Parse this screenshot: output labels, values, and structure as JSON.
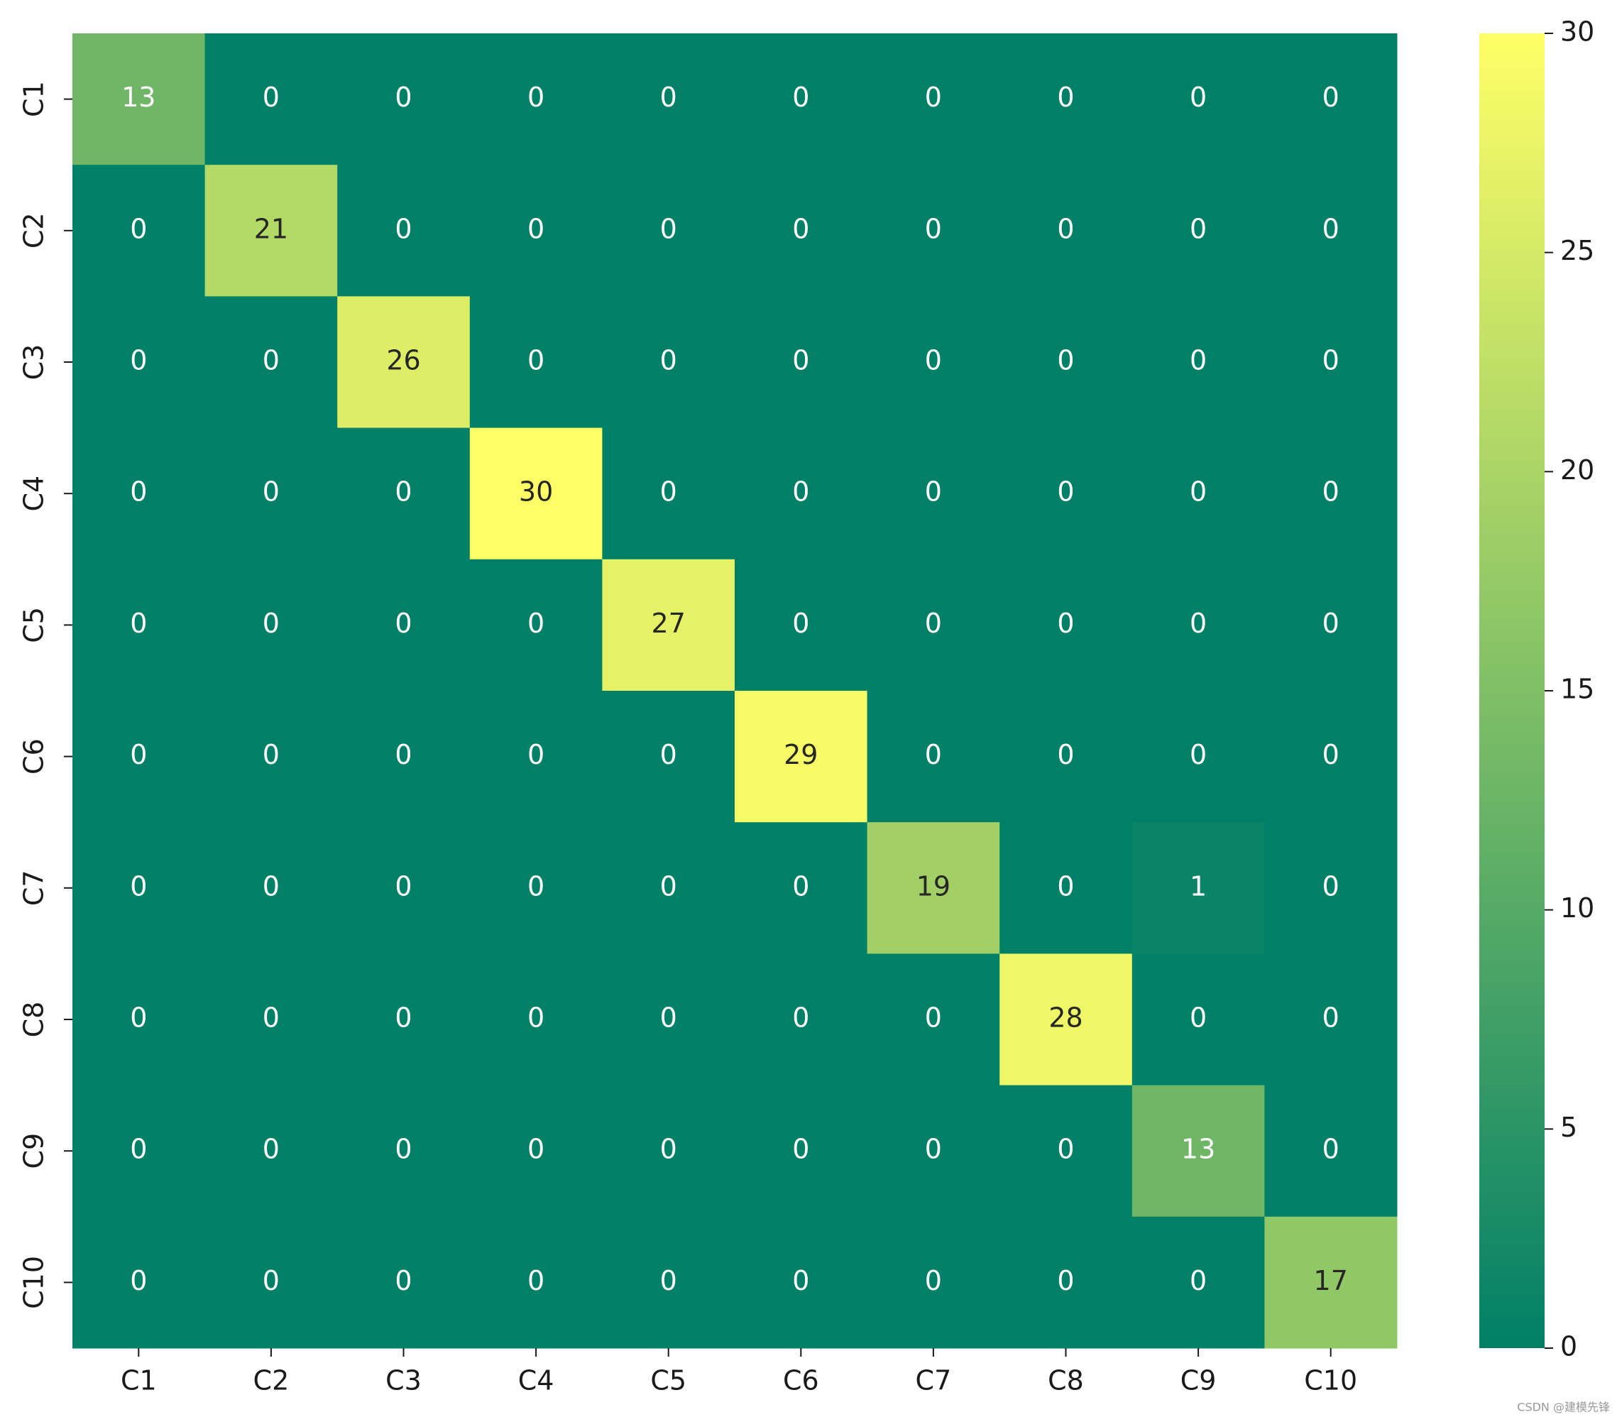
{
  "chart_data": {
    "type": "heatmap",
    "x_categories": [
      "C1",
      "C2",
      "C3",
      "C4",
      "C5",
      "C6",
      "C7",
      "C8",
      "C9",
      "C10"
    ],
    "y_categories": [
      "C1",
      "C2",
      "C3",
      "C4",
      "C5",
      "C6",
      "C7",
      "C8",
      "C9",
      "C10"
    ],
    "values": [
      [
        13,
        0,
        0,
        0,
        0,
        0,
        0,
        0,
        0,
        0
      ],
      [
        0,
        21,
        0,
        0,
        0,
        0,
        0,
        0,
        0,
        0
      ],
      [
        0,
        0,
        26,
        0,
        0,
        0,
        0,
        0,
        0,
        0
      ],
      [
        0,
        0,
        0,
        30,
        0,
        0,
        0,
        0,
        0,
        0
      ],
      [
        0,
        0,
        0,
        0,
        27,
        0,
        0,
        0,
        0,
        0
      ],
      [
        0,
        0,
        0,
        0,
        0,
        29,
        0,
        0,
        0,
        0
      ],
      [
        0,
        0,
        0,
        0,
        0,
        0,
        19,
        0,
        1,
        0
      ],
      [
        0,
        0,
        0,
        0,
        0,
        0,
        0,
        28,
        0,
        0
      ],
      [
        0,
        0,
        0,
        0,
        0,
        0,
        0,
        0,
        13,
        0
      ],
      [
        0,
        0,
        0,
        0,
        0,
        0,
        0,
        0,
        0,
        17
      ]
    ],
    "colormap": "summer",
    "clim": [
      0,
      30
    ],
    "cticks": [
      0,
      5,
      10,
      15,
      20,
      25,
      30
    ]
  },
  "watermark": "CSDN @建模先锋"
}
